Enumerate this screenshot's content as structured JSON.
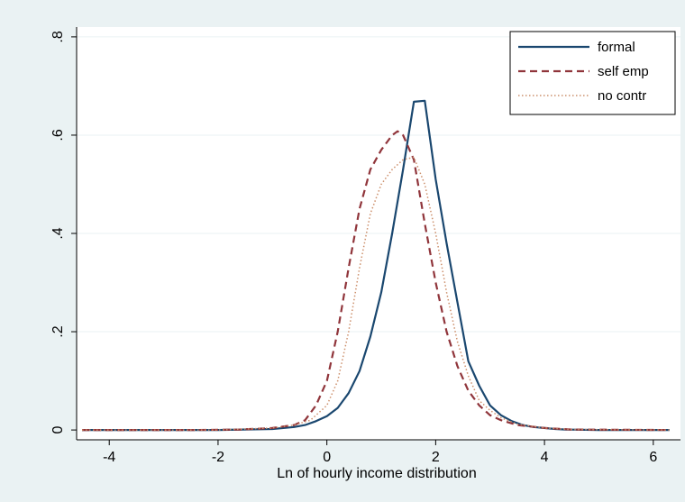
{
  "chart_data": {
    "type": "line",
    "title": "",
    "xlabel": "Ln of hourly income distribution",
    "ylabel": "",
    "xlim": [
      -4.6,
      6.5
    ],
    "ylim": [
      -0.02,
      0.82
    ],
    "xticks": [
      -4,
      -2,
      0,
      2,
      4,
      6
    ],
    "xtick_labels": [
      "-4",
      "-2",
      "0",
      "2",
      "4",
      "6"
    ],
    "yticks": [
      0,
      0.2,
      0.4,
      0.6,
      0.8
    ],
    "ytick_labels": [
      "0",
      ".2",
      ".4",
      ".6",
      ".8"
    ],
    "grid": "horizontal",
    "legend_position": "top-right",
    "background": "#eaf2f3",
    "plot_background": "#ffffff",
    "series": [
      {
        "name": "formal",
        "color": "#1a476f",
        "style": "solid",
        "x": [
          -4.5,
          -2,
          -1,
          -0.6,
          -0.4,
          -0.2,
          0,
          0.2,
          0.4,
          0.6,
          0.8,
          1.0,
          1.2,
          1.4,
          1.6,
          1.8,
          2.0,
          2.2,
          2.4,
          2.6,
          2.8,
          3.0,
          3.2,
          3.4,
          3.6,
          3.8,
          4.0,
          4.2,
          4.4,
          5.0,
          6.3
        ],
        "y": [
          0,
          0,
          0.002,
          0.006,
          0.01,
          0.018,
          0.028,
          0.045,
          0.075,
          0.12,
          0.19,
          0.28,
          0.4,
          0.53,
          0.668,
          0.67,
          0.51,
          0.38,
          0.26,
          0.14,
          0.09,
          0.05,
          0.03,
          0.018,
          0.01,
          0.006,
          0.004,
          0.002,
          0.001,
          0,
          0
        ]
      },
      {
        "name": "self emp",
        "color": "#90353b",
        "style": "dashed",
        "x": [
          -4.5,
          -2.4,
          -1.6,
          -1.0,
          -0.6,
          -0.4,
          -0.2,
          0,
          0.2,
          0.4,
          0.6,
          0.8,
          1.0,
          1.2,
          1.3,
          1.4,
          1.6,
          1.8,
          2.0,
          2.2,
          2.4,
          2.6,
          2.8,
          3.0,
          3.2,
          3.5,
          4.0,
          4.5,
          6.3
        ],
        "y": [
          0,
          0,
          0.001,
          0.004,
          0.01,
          0.02,
          0.05,
          0.1,
          0.2,
          0.33,
          0.45,
          0.53,
          0.57,
          0.6,
          0.608,
          0.6,
          0.55,
          0.42,
          0.3,
          0.2,
          0.13,
          0.08,
          0.05,
          0.03,
          0.02,
          0.01,
          0.004,
          0.001,
          0
        ]
      },
      {
        "name": "no contr",
        "color": "#cc8f6b",
        "style": "dotted",
        "x": [
          -4.5,
          -2.0,
          -1.0,
          -0.6,
          -0.3,
          0,
          0.2,
          0.4,
          0.6,
          0.8,
          1.0,
          1.2,
          1.4,
          1.6,
          1.8,
          2.0,
          2.2,
          2.4,
          2.6,
          2.8,
          3.0,
          3.2,
          3.5,
          4.0,
          4.5,
          6.3
        ],
        "y": [
          0,
          0,
          0.004,
          0.01,
          0.02,
          0.05,
          0.1,
          0.2,
          0.33,
          0.44,
          0.5,
          0.53,
          0.55,
          0.555,
          0.5,
          0.4,
          0.28,
          0.18,
          0.11,
          0.06,
          0.04,
          0.025,
          0.012,
          0.004,
          0.001,
          0
        ]
      }
    ]
  }
}
